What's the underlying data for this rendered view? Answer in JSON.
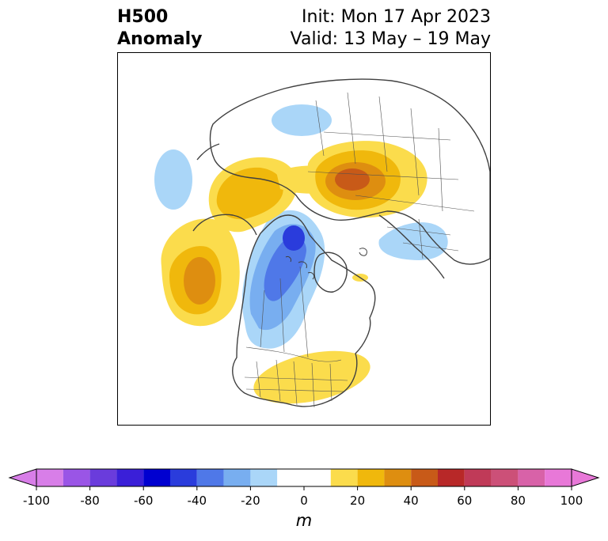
{
  "title": {
    "left_line1": "H500",
    "left_line2": "Anomaly",
    "right_line1": "Init: Mon 17 Apr 2023",
    "right_line2": "Valid: 13 May – 19 May"
  },
  "map": {
    "projection": "north-polar-stereographic",
    "features": [
      "coastlines",
      "country-borders",
      "us-state-borders"
    ],
    "anomaly_regions": [
      {
        "region": "Gulf of Alaska / NE Pacific",
        "sign": "positive",
        "peak_m": 30
      },
      {
        "region": "Bering Sea / eastern Siberia",
        "sign": "positive",
        "peak_m": 20
      },
      {
        "region": "Central Siberia",
        "sign": "positive",
        "peak_m": 50
      },
      {
        "region": "Eastern US",
        "sign": "positive",
        "peak_m": 10
      },
      {
        "region": "Western Canada / Arctic",
        "sign": "negative",
        "peak_m": -40
      },
      {
        "region": "Scandinavia / NW Russia",
        "sign": "negative",
        "peak_m": -10
      },
      {
        "region": "Central Asia",
        "sign": "negative",
        "peak_m": -10
      },
      {
        "region": "West Pacific",
        "sign": "negative",
        "peak_m": -10
      }
    ]
  },
  "colorbar": {
    "unit": "m",
    "ticks": [
      "-100",
      "-80",
      "-60",
      "-40",
      "-20",
      "0",
      "20",
      "40",
      "60",
      "80",
      "100"
    ],
    "levels": [
      -100,
      -90,
      -80,
      -70,
      -60,
      -50,
      -40,
      -30,
      -20,
      -10,
      10,
      20,
      30,
      40,
      50,
      60,
      70,
      80,
      90,
      100
    ],
    "colors": [
      "#d87ee8",
      "#9a55e6",
      "#6a3cdc",
      "#3a1fd8",
      "#0000d0",
      "#2a3cdc",
      "#4f78e8",
      "#78aef0",
      "#aad6f8",
      "#ffffff",
      "#fbdc4c",
      "#f0b80c",
      "#de8e10",
      "#c85a18",
      "#b82828",
      "#c03a58",
      "#cc5078",
      "#d862a8",
      "#e878d8"
    ],
    "extend_min_color": "#d87ee8",
    "extend_max_color": "#e878d8"
  }
}
